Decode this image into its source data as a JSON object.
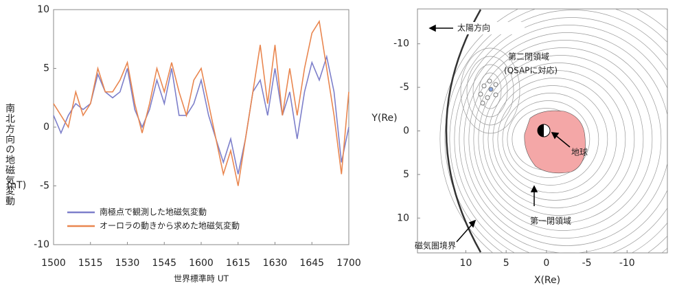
{
  "chart_data": [
    {
      "type": "line",
      "ylabel": "南北方向の地磁気変動",
      "ylabel_unit": "(nT)",
      "xlabel": "世界標準時 UT",
      "x": [
        "1500",
        "1503",
        "1506",
        "1509",
        "1512",
        "1515",
        "1518",
        "1521",
        "1524",
        "1527",
        "1530",
        "1533",
        "1536",
        "1539",
        "1542",
        "1545",
        "1548",
        "1551",
        "1554",
        "1557",
        "1600",
        "1603",
        "1606",
        "1609",
        "1612",
        "1615",
        "1618",
        "1621",
        "1624",
        "1627",
        "1630",
        "1633",
        "1636",
        "1639",
        "1642",
        "1645",
        "1648",
        "1651",
        "1654",
        "1657",
        "1700"
      ],
      "xticks": [
        "1500",
        "1515",
        "1530",
        "1545",
        "1600",
        "1615",
        "1630",
        "1645",
        "1700"
      ],
      "ylim": [
        -10,
        10
      ],
      "yticks": [
        -10,
        -5,
        0,
        5,
        10
      ],
      "legend": "lower left",
      "series": [
        {
          "name": "南極点で観測した地磁気変動",
          "color": "#7d7fca",
          "values": [
            1,
            -0.5,
            1,
            2,
            1.5,
            2,
            4.5,
            3,
            2.5,
            3,
            5,
            1.5,
            0,
            1.5,
            4,
            2,
            5,
            1,
            1,
            2,
            4,
            1,
            -1,
            -3,
            -1,
            -4,
            -1,
            3,
            4,
            1,
            5,
            1,
            3,
            -1,
            3,
            5.5,
            4,
            6,
            3,
            -3,
            0
          ]
        },
        {
          "name": "オーロラの動きから求めた地磁気変動",
          "color": "#e9864f",
          "values": [
            2,
            1,
            0,
            3,
            1,
            2,
            5,
            3,
            3,
            4,
            5.5,
            2,
            -0.5,
            2,
            5,
            3,
            5.5,
            3,
            1,
            4,
            5,
            2,
            -1,
            -4,
            -2,
            -5,
            -1,
            3,
            7,
            2,
            7,
            1,
            5,
            1,
            5,
            8,
            9,
            5,
            1,
            -4,
            3
          ]
        }
      ]
    },
    {
      "type": "contour",
      "xlabel": "X(Re)",
      "ylabel": "Y(Re)",
      "xlim": [
        16,
        -15
      ],
      "ylim": [
        -14,
        14
      ],
      "xticks": [
        10,
        5,
        0,
        -5,
        -10
      ],
      "yticks": [
        -10,
        -5,
        0,
        5,
        10
      ],
      "annotations": [
        "太陽方向",
        "第二閉領域",
        "(QSAPに対応)",
        "地球",
        "第一閉領域",
        "磁気圏境界"
      ]
    }
  ]
}
